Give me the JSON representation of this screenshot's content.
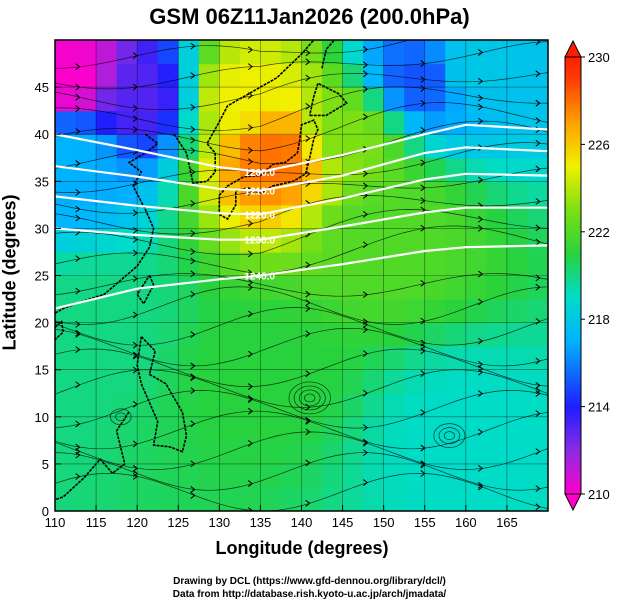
{
  "title": "GSM 06Z11Jan2026 (200.0hPa)",
  "x_axis": {
    "label": "Longitude (degrees)",
    "min": 110,
    "max": 170,
    "ticks": [
      110,
      115,
      120,
      125,
      130,
      135,
      140,
      145,
      150,
      155,
      160,
      165
    ]
  },
  "y_axis": {
    "label": "Latitude  (degrees)",
    "min": 0,
    "max": 50,
    "ticks": [
      0,
      5,
      10,
      15,
      20,
      25,
      30,
      35,
      40,
      45
    ]
  },
  "colorbar": {
    "min": 210,
    "max": 230,
    "labels": [
      210,
      214,
      218,
      222,
      226,
      230
    ],
    "stops": [
      {
        "value": 210,
        "color": "#ff00cc"
      },
      {
        "value": 212,
        "color": "#8a2be2"
      },
      {
        "value": 214,
        "color": "#1e1eff"
      },
      {
        "value": 217,
        "color": "#00b4ff"
      },
      {
        "value": 219,
        "color": "#00dcc8"
      },
      {
        "value": 221,
        "color": "#28d23c"
      },
      {
        "value": 223,
        "color": "#7ce014"
      },
      {
        "value": 225,
        "color": "#f0f000"
      },
      {
        "value": 227,
        "color": "#ffa000"
      },
      {
        "value": 229,
        "color": "#ff3c00"
      },
      {
        "value": 230,
        "color": "#ff1e00"
      }
    ]
  },
  "contours": {
    "color": "#ffffff",
    "labels": [
      "1200.0",
      "1210.0",
      "1220.0",
      "1230.0",
      "1240.0"
    ]
  },
  "credits": {
    "line1": "Drawing by DCL (https://www.gfd-dennou.org/library/dcl/)",
    "line2": "Data from http://database.rish.kyoto-u.ac.jp/arch/jmadata/"
  },
  "chart_data": {
    "type": "heatmap",
    "title": "GSM 06Z11Jan2026 (200.0hPa)",
    "xlabel": "Longitude (degrees)",
    "ylabel": "Latitude  (degrees)",
    "xlim": [
      110,
      170
    ],
    "ylim": [
      0,
      50
    ],
    "grid": true,
    "colorbar_range": [
      210,
      230
    ],
    "field_estimate": [
      {
        "lon": 112,
        "lat": 46,
        "value": 210
      },
      {
        "lon": 120,
        "lat": 44,
        "value": 213
      },
      {
        "lon": 112,
        "lat": 38,
        "value": 217
      },
      {
        "lon": 137,
        "lat": 38,
        "value": 228
      },
      {
        "lon": 133,
        "lat": 44,
        "value": 225
      },
      {
        "lon": 145,
        "lat": 40,
        "value": 223
      },
      {
        "lon": 160,
        "lat": 47,
        "value": 218
      },
      {
        "lon": 155,
        "lat": 46,
        "value": 215
      },
      {
        "lon": 150,
        "lat": 30,
        "value": 222
      },
      {
        "lon": 135,
        "lat": 15,
        "value": 221
      },
      {
        "lon": 115,
        "lat": 20,
        "value": 220
      },
      {
        "lon": 160,
        "lat": 8,
        "value": 219
      }
    ],
    "contour_lines": [
      {
        "label": "1200.0",
        "points": [
          [
            110,
            40
          ],
          [
            120,
            38.3
          ],
          [
            130,
            36.5
          ],
          [
            135,
            36
          ],
          [
            145,
            37.8
          ],
          [
            155,
            40
          ],
          [
            160,
            41
          ],
          [
            170,
            40.5
          ]
        ]
      },
      {
        "label": "1210.0",
        "points": [
          [
            110,
            36.6
          ],
          [
            120,
            35.5
          ],
          [
            130,
            34.2
          ],
          [
            135,
            34
          ],
          [
            145,
            35.6
          ],
          [
            155,
            38
          ],
          [
            160,
            38.6
          ],
          [
            170,
            38.2
          ]
        ]
      },
      {
        "label": "1220.0",
        "points": [
          [
            110,
            33.4
          ],
          [
            120,
            32.4
          ],
          [
            130,
            31.6
          ],
          [
            135,
            31.5
          ],
          [
            145,
            33.2
          ],
          [
            155,
            35.2
          ],
          [
            160,
            35.8
          ],
          [
            170,
            35.6
          ]
        ]
      },
      {
        "label": "1230.0",
        "points": [
          [
            110,
            30
          ],
          [
            120,
            29.3
          ],
          [
            130,
            28.8
          ],
          [
            135,
            28.8
          ],
          [
            145,
            30.2
          ],
          [
            155,
            31.7
          ],
          [
            160,
            32.2
          ],
          [
            170,
            32.2
          ]
        ]
      },
      {
        "label": "1240.0",
        "points": [
          [
            110,
            21.5
          ],
          [
            120,
            23.6
          ],
          [
            130,
            24.6
          ],
          [
            135,
            25
          ],
          [
            145,
            26.2
          ],
          [
            155,
            27.6
          ],
          [
            160,
            28
          ],
          [
            170,
            28.2
          ]
        ]
      }
    ]
  }
}
